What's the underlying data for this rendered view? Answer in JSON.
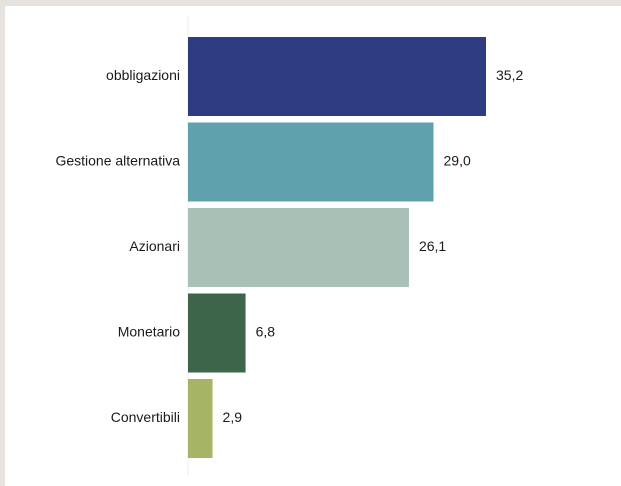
{
  "chart_data": {
    "type": "bar",
    "orientation": "horizontal",
    "categories": [
      "obbligazioni",
      "Gestione alternativa",
      "Azionari",
      "Monetario",
      "Convertibili"
    ],
    "values": [
      35.2,
      29.0,
      26.1,
      6.8,
      2.9
    ],
    "value_labels": [
      "35,2",
      "29,0",
      "26,1",
      "6,8",
      "2,9"
    ],
    "colors": [
      "#2e3c82",
      "#5fa2ad",
      "#a9c0b6",
      "#3d6549",
      "#a6b466"
    ],
    "xlim": [
      0,
      35.2
    ],
    "grid": false,
    "legend": "none",
    "title": "",
    "xlabel": "",
    "ylabel": ""
  }
}
